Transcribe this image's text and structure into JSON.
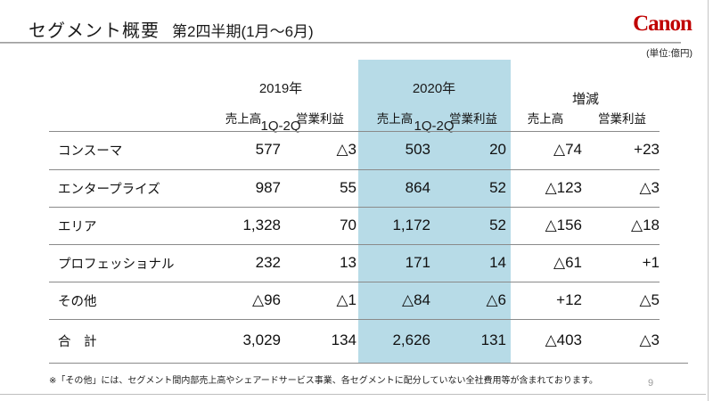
{
  "slide": {
    "title": "セグメント概要",
    "subtitle": "第2四半期(1月〜6月)",
    "logo_text": "Canon",
    "logo_color": "#c00000",
    "unit_note": "(単位:億円)",
    "footnote": "※「その他」には、セグメント間内部売上高やシェアードサービス事業、各セグメントに配分していない全社費用等が含まれております。",
    "page_number": "9"
  },
  "chart_data": {
    "type": "table",
    "highlight_color": "#b7dbe7",
    "highlighted_group": "2020年 1Q-2Q",
    "column_groups": [
      {
        "label": "2019年",
        "sublabel": "1Q-2Q",
        "columns": [
          "売上高",
          "営業利益"
        ],
        "highlighted": false
      },
      {
        "label": "2020年",
        "sublabel": "1Q-2Q",
        "columns": [
          "売上高",
          "営業利益"
        ],
        "highlighted": true
      },
      {
        "label": "増減",
        "sublabel": "",
        "columns": [
          "売上高",
          "営業利益"
        ],
        "highlighted": false
      }
    ],
    "rows": [
      {
        "label": "コンスーマ",
        "values": [
          "577",
          "△3",
          "503",
          "20",
          "△74",
          "+23"
        ]
      },
      {
        "label": "エンタープライズ",
        "values": [
          "987",
          "55",
          "864",
          "52",
          "△123",
          "△3"
        ]
      },
      {
        "label": "エリア",
        "values": [
          "1,328",
          "70",
          "1,172",
          "52",
          "△156",
          "△18"
        ]
      },
      {
        "label": "プロフェッショナル",
        "values": [
          "232",
          "13",
          "171",
          "14",
          "△61",
          "+1"
        ]
      },
      {
        "label": "その他",
        "values": [
          "△96",
          "△1",
          "△84",
          "△6",
          "+12",
          "△5"
        ]
      },
      {
        "label": "合　計",
        "values": [
          "3,029",
          "134",
          "2,626",
          "131",
          "△403",
          "△3"
        ]
      }
    ]
  }
}
